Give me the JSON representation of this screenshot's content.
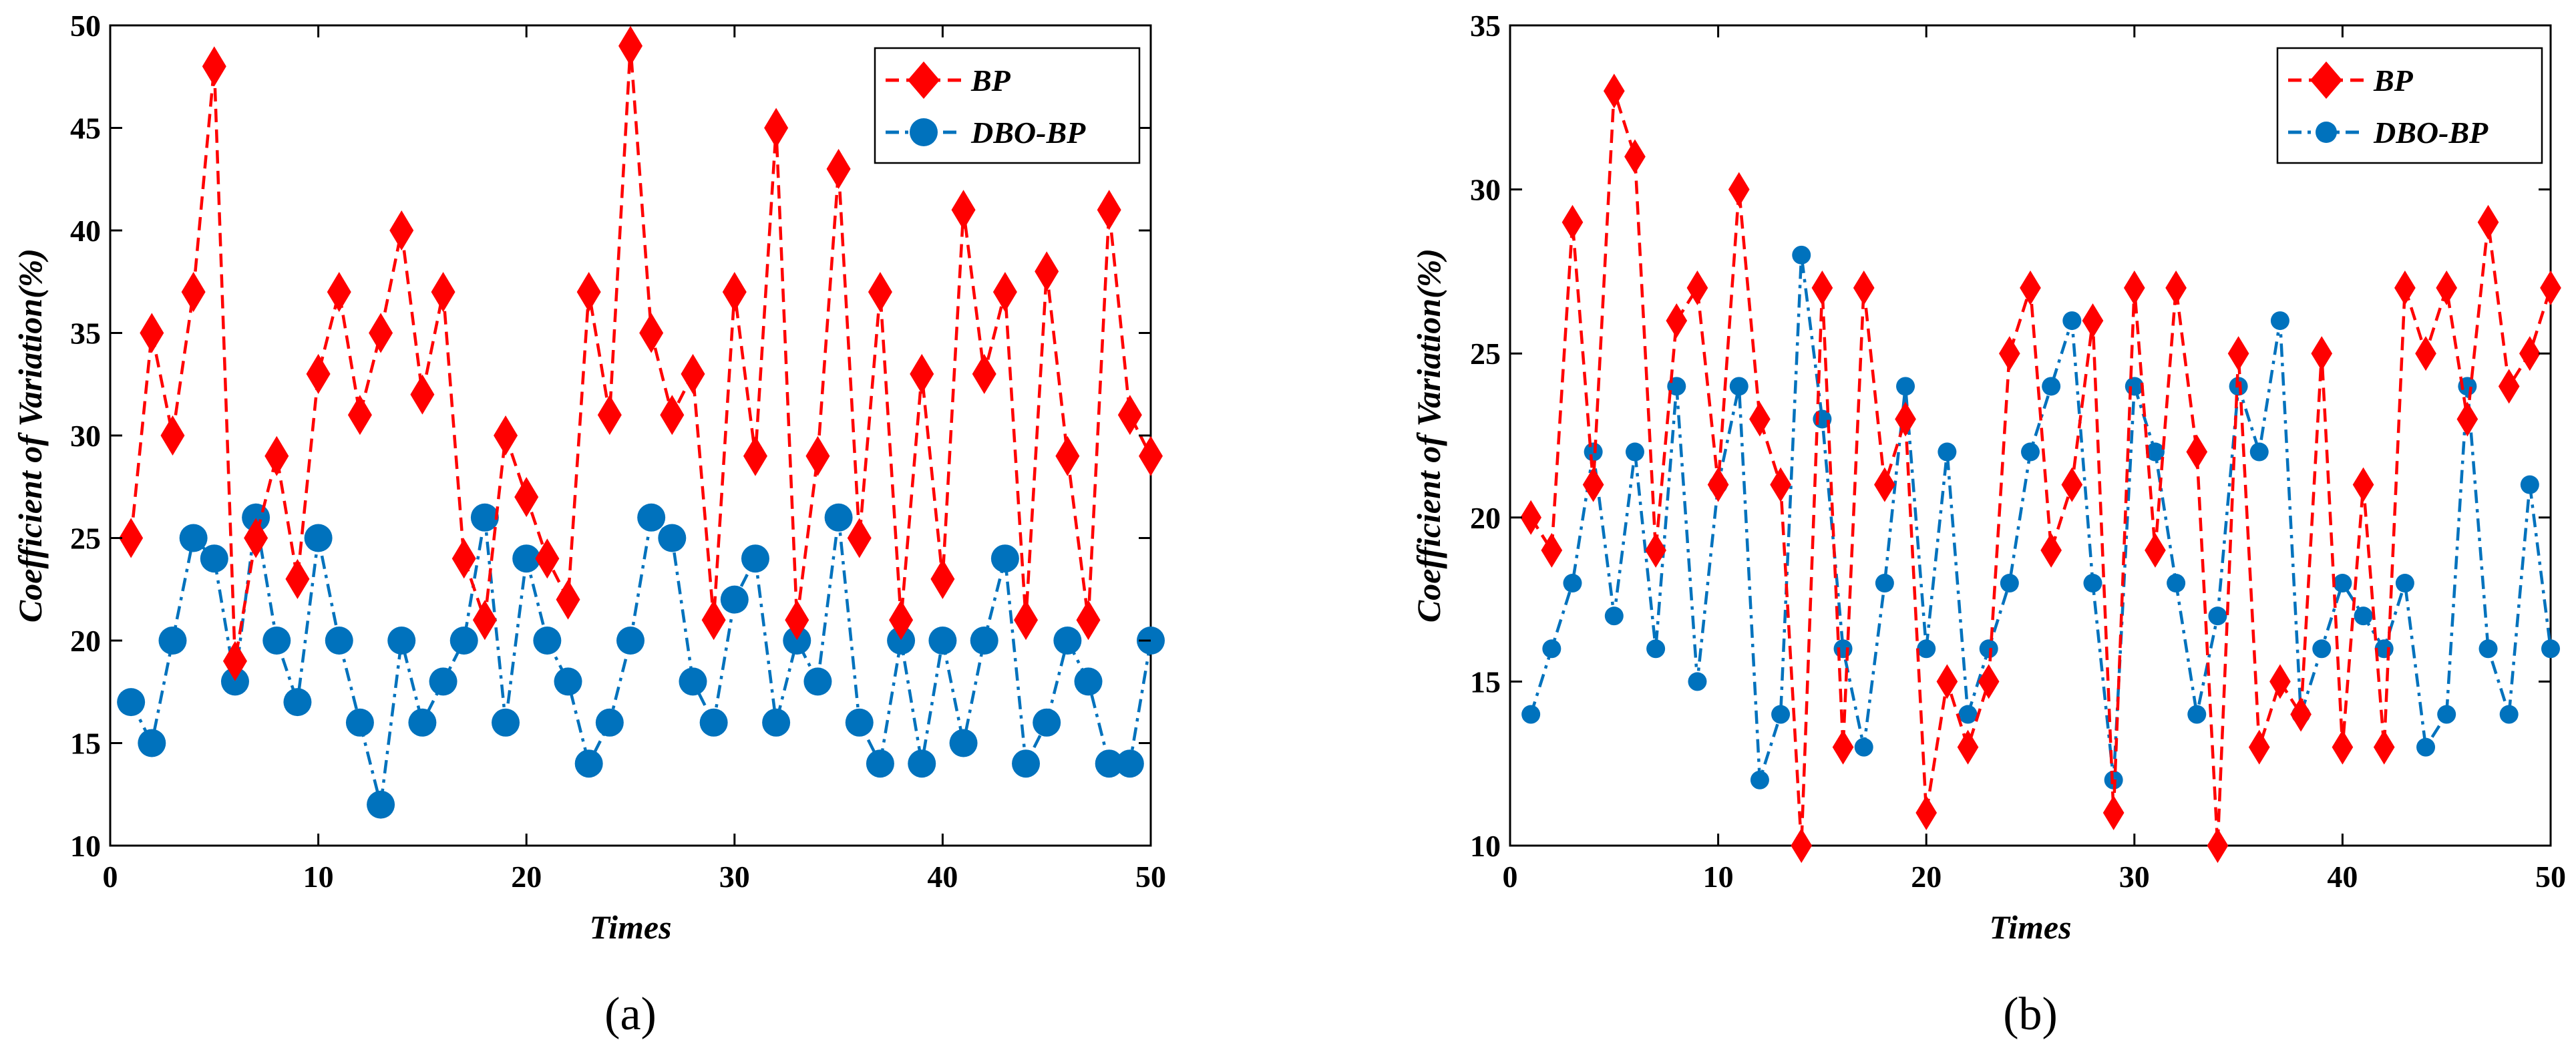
{
  "colors": {
    "bp": "#ff0000",
    "dbo": "#0072bd"
  },
  "chart_data": [
    {
      "type": "line",
      "caption": "(a)",
      "xlabel": "Times",
      "ylabel": "Coefficient of Variation(%)",
      "xlim": [
        0,
        50
      ],
      "ylim": [
        10,
        50
      ],
      "xticks": [
        0,
        10,
        20,
        30,
        40,
        50
      ],
      "yticks": [
        10,
        15,
        20,
        25,
        30,
        35,
        40,
        45,
        50
      ],
      "grid": false,
      "legend_position": "top-right",
      "x": [
        1,
        2,
        3,
        4,
        5,
        6,
        7,
        8,
        9,
        10,
        11,
        12,
        13,
        14,
        15,
        16,
        17,
        18,
        19,
        20,
        21,
        22,
        23,
        24,
        25,
        26,
        27,
        28,
        29,
        30,
        31,
        32,
        33,
        34,
        35,
        36,
        37,
        38,
        39,
        40,
        41,
        42,
        43,
        44,
        45,
        46,
        47,
        48,
        49,
        50
      ],
      "series": [
        {
          "name": "BP",
          "style": "dashed",
          "marker": "diamond",
          "values": [
            25,
            35,
            30,
            37,
            48,
            19,
            25,
            29,
            23,
            33,
            37,
            31,
            35,
            40,
            32,
            37,
            24,
            21,
            30,
            27,
            24,
            22,
            37,
            31,
            49,
            35,
            31,
            33,
            21,
            37,
            29,
            45,
            21,
            29,
            43,
            25,
            37,
            21,
            33,
            23,
            41,
            33,
            37,
            21,
            38,
            29,
            21,
            41,
            31,
            29
          ]
        },
        {
          "name": "DBO-BP",
          "style": "dashdot",
          "marker": "circle",
          "values": [
            17,
            15,
            20,
            25,
            24,
            18,
            26,
            20,
            17,
            25,
            20,
            16,
            12,
            20,
            16,
            18,
            20,
            26,
            16,
            24,
            20,
            18,
            14,
            16,
            20,
            26,
            25,
            18,
            16,
            22,
            24,
            16,
            20,
            18,
            26,
            16,
            14,
            20,
            14,
            20,
            15,
            20,
            24,
            14,
            16,
            20,
            18,
            14,
            14,
            20
          ]
        }
      ]
    },
    {
      "type": "line",
      "caption": "(b)",
      "xlabel": "Times",
      "ylabel": "Coefficient of Variation(%)",
      "xlim": [
        0,
        50
      ],
      "ylim": [
        10,
        35
      ],
      "xticks": [
        0,
        10,
        20,
        30,
        40,
        50
      ],
      "yticks": [
        10,
        15,
        20,
        25,
        30,
        35
      ],
      "grid": false,
      "legend_position": "top-right",
      "x": [
        1,
        2,
        3,
        4,
        5,
        6,
        7,
        8,
        9,
        10,
        11,
        12,
        13,
        14,
        15,
        16,
        17,
        18,
        19,
        20,
        21,
        22,
        23,
        24,
        25,
        26,
        27,
        28,
        29,
        30,
        31,
        32,
        33,
        34,
        35,
        36,
        37,
        38,
        39,
        40,
        41,
        42,
        43,
        44,
        45,
        46,
        47,
        48,
        49,
        50
      ],
      "series": [
        {
          "name": "BP",
          "style": "dashed",
          "marker": "diamond",
          "values": [
            20,
            19,
            29,
            21,
            33,
            31,
            19,
            26,
            27,
            21,
            30,
            23,
            21,
            10,
            27,
            13,
            27,
            21,
            23,
            11,
            15,
            13,
            15,
            25,
            27,
            19,
            21,
            26,
            11,
            27,
            19,
            27,
            22,
            10,
            25,
            13,
            15,
            14,
            25,
            13,
            21,
            13,
            27,
            25,
            27,
            23,
            29,
            24,
            25,
            27
          ]
        },
        {
          "name": "DBO-BP",
          "style": "dashdot",
          "marker": "circle",
          "values": [
            14,
            16,
            18,
            22,
            17,
            22,
            16,
            24,
            15,
            21,
            24,
            12,
            14,
            28,
            23,
            16,
            13,
            18,
            24,
            16,
            22,
            14,
            16,
            18,
            22,
            24,
            26,
            18,
            12,
            24,
            22,
            18,
            14,
            17,
            24,
            22,
            26,
            14,
            16,
            18,
            17,
            16,
            18,
            13,
            14,
            24,
            16,
            14,
            21,
            16
          ]
        }
      ]
    }
  ]
}
